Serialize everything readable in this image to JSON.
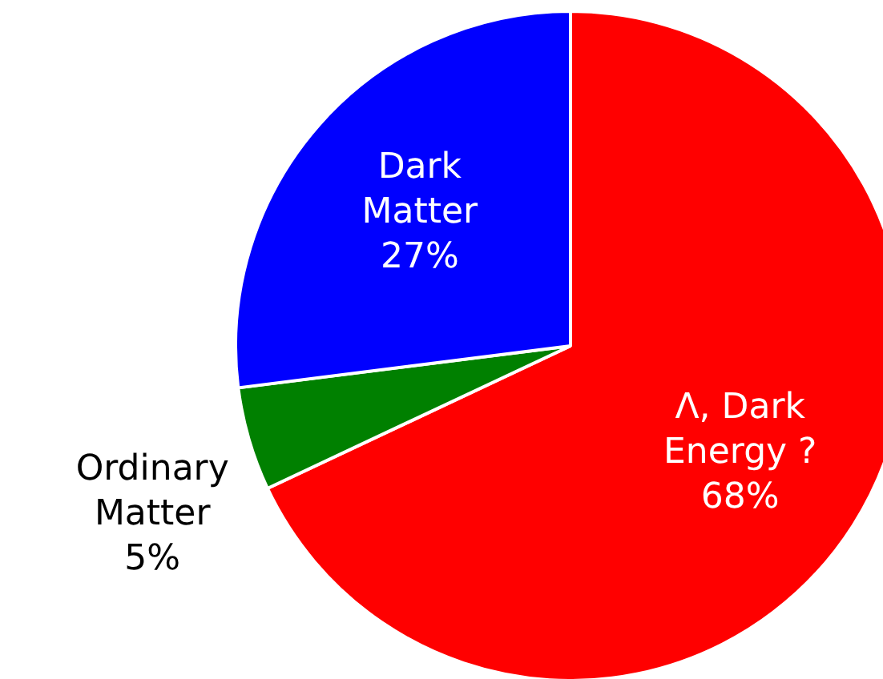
{
  "chart_data": {
    "type": "pie",
    "categories": [
      "Λ, Dark Energy ?",
      "Ordinary Matter",
      "Dark Matter"
    ],
    "values": [
      68,
      5,
      27
    ],
    "value_labels": [
      "68%",
      "5%",
      "27%"
    ],
    "colors": [
      "#ff0000",
      "#008000",
      "#0000ff"
    ],
    "legend": false
  }
}
